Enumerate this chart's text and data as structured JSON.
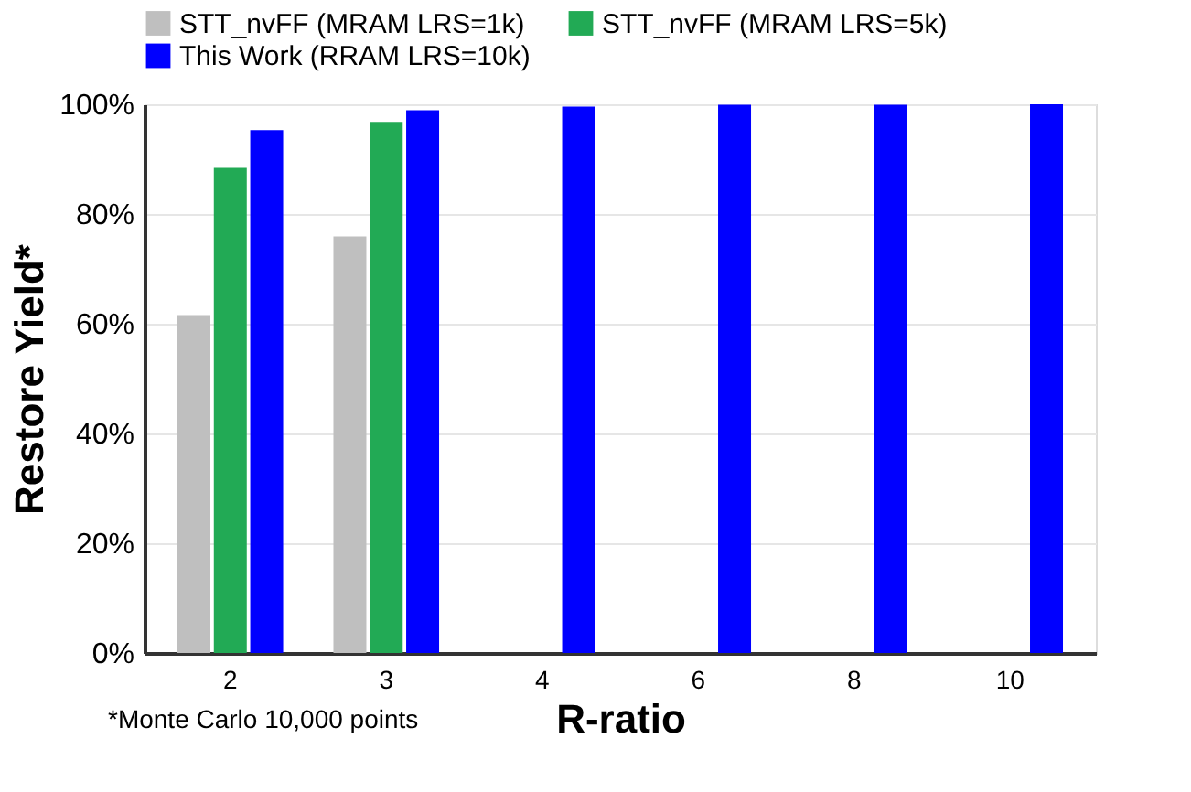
{
  "chart_data": {
    "type": "bar",
    "ylabel": "Restore Yield*",
    "xlabel": "R-ratio",
    "categories": [
      "2",
      "3",
      "4",
      "6",
      "8",
      "10"
    ],
    "series": [
      {
        "name": "STT_nvFF (MRAM LRS=1k)",
        "color": "#bfbfbf",
        "values": [
          61.6,
          75.9,
          null,
          null,
          null,
          null
        ]
      },
      {
        "name": "STT_nvFF (MRAM LRS=5k)",
        "color": "#22aa55",
        "values": [
          88.4,
          96.8,
          null,
          null,
          null,
          null
        ]
      },
      {
        "name": "This Work (RRAM LRS=10k)",
        "color": "#0000ff",
        "values": [
          95.3,
          98.9,
          99.6,
          99.9,
          99.9,
          100
        ]
      }
    ],
    "ylim": [
      0,
      100
    ],
    "yticks": [
      {
        "value": 0,
        "label": "0%"
      },
      {
        "value": 20,
        "label": "20%"
      },
      {
        "value": 40,
        "label": "40%"
      },
      {
        "value": 60,
        "label": "60%"
      },
      {
        "value": 80,
        "label": "80%"
      },
      {
        "value": 100,
        "label": "100%"
      }
    ],
    "grid": "y",
    "legend": "top",
    "annotations": [
      "*Monte Carlo 10,000 points"
    ]
  }
}
